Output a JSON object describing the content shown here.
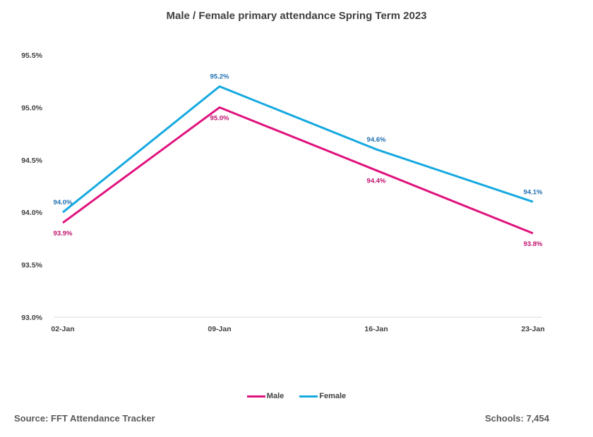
{
  "chart_data": {
    "type": "line",
    "title": "Male / Female primary attendance Spring Term 2023",
    "categories": [
      "02-Jan",
      "09-Jan",
      "16-Jan",
      "23-Jan"
    ],
    "series": [
      {
        "name": "Male",
        "color": "#e0127e",
        "values": [
          93.9,
          95.0,
          94.4,
          93.8
        ],
        "labels": [
          "93.9%",
          "95.0%",
          "94.4%",
          "93.8%"
        ]
      },
      {
        "name": "Female",
        "color": "#16a9e0",
        "values": [
          94.0,
          95.2,
          94.6,
          94.1
        ],
        "labels": [
          "94.0%",
          "95.2%",
          "94.6%",
          "94.1%"
        ]
      }
    ],
    "ylim": [
      93.0,
      95.5
    ],
    "yticks": [
      "93.0%",
      "93.5%",
      "94.0%",
      "94.5%",
      "95.0%",
      "95.5%"
    ],
    "ytick_values": [
      93.0,
      93.5,
      94.0,
      94.5,
      95.0,
      95.5
    ],
    "grid": false,
    "legend_position": "bottom"
  },
  "footer": {
    "source": "Source: FFT Attendance Tracker",
    "schools": "Schools: 7,454"
  },
  "colors": {
    "male_label": "#c0106e",
    "female_label": "#1f6fb0"
  }
}
